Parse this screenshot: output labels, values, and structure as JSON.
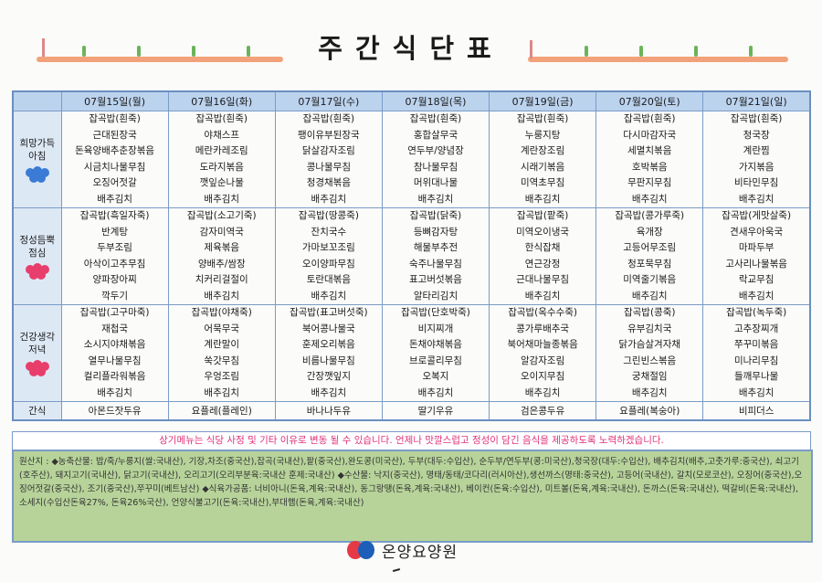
{
  "title": "주간식단표",
  "days": [
    "07월15일(월)",
    "07월16일(화)",
    "07월17일(수)",
    "07월18일(목)",
    "07월19일(금)",
    "07월20일(토)",
    "07월21일(일)"
  ],
  "meals": [
    {
      "label": "희망가득 아침",
      "menus": [
        [
          "잡곡밥(흰죽)",
          "근대된장국",
          "돈육양배추춘장볶음",
          "시금치나물무침",
          "오징어젓갈",
          "배추김치"
        ],
        [
          "잡곡밥(흰죽)",
          "야채스프",
          "메란카레조림",
          "도라지볶음",
          "깻잎순나물",
          "배추김치"
        ],
        [
          "잡곡밥(흰죽)",
          "팽이유부된장국",
          "닭살감자조림",
          "콩나물무침",
          "청경채볶음",
          "배추김치"
        ],
        [
          "잡곡밥(흰죽)",
          "홍합살무국",
          "연두부/양념장",
          "참나물무침",
          "머위대나물",
          "배추김치"
        ],
        [
          "잡곡밥(흰죽)",
          "누룽지탕",
          "계란장조림",
          "시래기볶음",
          "미역초무침",
          "배추김치"
        ],
        [
          "잡곡밥(흰죽)",
          "다시마감자국",
          "세멸치볶음",
          "호박볶음",
          "무판지무침",
          "배추김치"
        ],
        [
          "잡곡밥(흰죽)",
          "청국장",
          "계란찜",
          "가지볶음",
          "비타민무침",
          "배추김치"
        ]
      ]
    },
    {
      "label": "정성듬뿍 점심",
      "menus": [
        [
          "잡곡밥(흑일자죽)",
          "반계탕",
          "두부조림",
          "아삭이고추무침",
          "양파장아찌",
          "깍두기"
        ],
        [
          "잡곡밥(소고기죽)",
          "감자미역국",
          "제육볶음",
          "양배추/쌈장",
          "치커리걸절이",
          "배추김치"
        ],
        [
          "잡곡밥(땅콩죽)",
          "잔치국수",
          "가마보꼬조림",
          "오이양파무침",
          "토란대볶음",
          "배추김치"
        ],
        [
          "잡곡밥(닭죽)",
          "등뼈감자탕",
          "해물부추전",
          "숙주나물무침",
          "표고버섯볶음",
          "알타리김치"
        ],
        [
          "잡곡밥(팥죽)",
          "미역오이냉국",
          "한식잡채",
          "연근강정",
          "근대나물무침",
          "배추김치"
        ],
        [
          "잡곡밥(콩가루죽)",
          "육개장",
          "고등어무조림",
          "청포묵무침",
          "미역줄기볶음",
          "배추김치"
        ],
        [
          "잡곡밥(게맛살죽)",
          "견새우아욱국",
          "마파두부",
          "고사리나물볶음",
          "락교무침",
          "배추김치"
        ]
      ]
    },
    {
      "label": "건강생각 저녁",
      "menus": [
        [
          "잡곡밥(고구마죽)",
          "재첩국",
          "소시지야채볶음",
          "열무나물무침",
          "컬리플라워볶음",
          "배추김치"
        ],
        [
          "잡곡밥(야채죽)",
          "어묵무국",
          "계란말이",
          "쑥갓무침",
          "우엉조림",
          "배추김치"
        ],
        [
          "잡곡밥(표고버섯죽)",
          "북어콩나물국",
          "훈제오리볶음",
          "비름나물무침",
          "간장깻잎지",
          "배추김치"
        ],
        [
          "잡곡밥(단호박죽)",
          "비지찌개",
          "돈채야채볶음",
          "브로콜리무침",
          "오복지",
          "배추김치"
        ],
        [
          "잡곡밥(옥수수죽)",
          "콩가루배추국",
          "북어채마늘종볶음",
          "알감자조림",
          "오이지무침",
          "배추김치"
        ],
        [
          "잡곡밥(콩죽)",
          "유부김치국",
          "닭가슴살겨자채",
          "그린빈스볶음",
          "궁채절임",
          "배추김치"
        ],
        [
          "잡곡밥(녹두죽)",
          "고추장찌개",
          "쭈꾸미볶음",
          "미나리무침",
          "들깨무나물",
          "배추김치"
        ]
      ]
    }
  ],
  "snack": {
    "label": "간식",
    "items": [
      "아몬드잣두유",
      "요플레(플레인)",
      "바나나두유",
      "딸기우유",
      "검은콩두유",
      "요플레(복숭아)",
      "비피더스"
    ]
  },
  "notice": "상기메뉴는 식당 사정 및 기타 이유로 변동 될 수 있습니다. 언제나 맛깔스럽고 정성이 담긴 음식을 제공하도록 노력하겠습니다.",
  "origin": "원산지 : ◆농축산물: 밥/죽/누룽지(쌀:국내산), 기장,차조(중국산),잡곡(국내산),팥(중국산),완도콩(미국산), 두부(대두:수입산), 순두부/연두부(콩:미국산),청국장(대두:수입산), 배추김치(배추,고춧가루:중국산), 쇠고기(호주산), 돼지고기(국내산), 닭고기(국내산), 오리고기(오리부분육:국내산 훈제:국내산) ◆수산물: 낙지(중국산), 명태/동태/코다리(러시아산),생선까스(명태:중국산), 고등어(국내산), 갈치(모로코산), 오징어(중국산),오징어젓갈(중국산), 조기(중국산),쭈꾸미(베트남산) ◆식육가공품: 너비아니(돈육,계육:국내산), 동그랑땡(돈육,계육:국내산), 베이컨(돈육:수입산), 미트볼(돈육,계육:국내산), 돈까스(돈육:국내산), 떡갈비(돈육:국내산), 소세지(수입산돈육27%, 돈육26%국산), 언양식불고기(돈육:국내산),부대햄(돈육,계육:국내산)",
  "footer": "온양요양원",
  "colors": {
    "header_bg": "#bcd3ee",
    "label_bg": "#dde8f5",
    "origin_bg": "#b7d39a",
    "notice_text": "#e0307a",
    "border": "#7a9bc8"
  }
}
